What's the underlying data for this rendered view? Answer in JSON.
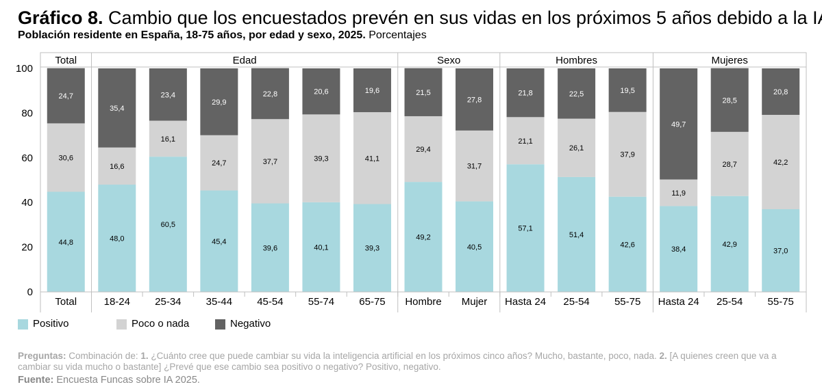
{
  "header": {
    "title_prefix": "Gráfico 8.",
    "title_text": " Cambio que los encuestados prevén en sus vidas en los próximos 5 años debido a la IA",
    "subtitle_bold": "Población residente en España, 18-75 años, por edad y sexo, 2025.",
    "subtitle_regular": " Porcentajes"
  },
  "chart_data": {
    "type": "bar",
    "stacked": true,
    "ylim": [
      0,
      100
    ],
    "yticks": [
      0,
      20,
      40,
      60,
      80,
      100
    ],
    "groups": [
      {
        "label": "Total",
        "categories": [
          "Total"
        ]
      },
      {
        "label": "Edad",
        "categories": [
          "18-24",
          "25-34",
          "35-44",
          "45-54",
          "55-74",
          "65-75"
        ]
      },
      {
        "label": "Sexo",
        "categories": [
          "Hombre",
          "Mujer"
        ]
      },
      {
        "label": "Hombres",
        "categories": [
          "Hasta 24",
          "25-54",
          "55-75"
        ]
      },
      {
        "label": "Mujeres",
        "categories": [
          "Hasta 24",
          "25-54",
          "55-75"
        ]
      }
    ],
    "categories": [
      "Total",
      "18-24",
      "25-34",
      "35-44",
      "45-54",
      "55-74",
      "65-75",
      "Hombre",
      "Mujer",
      "Hasta 24",
      "25-54",
      "55-75",
      "Hasta 24",
      "25-54",
      "55-75"
    ],
    "series": [
      {
        "name": "Positivo",
        "color": "#a8d8df",
        "values": [
          "44,8",
          "48,0",
          "60,5",
          "45,4",
          "39,6",
          "40,1",
          "39,3",
          "49,2",
          "40,5",
          "57,1",
          "51,4",
          "42,6",
          "38,4",
          "42,9",
          "37,0"
        ]
      },
      {
        "name": "Poco o nada",
        "color": "#d3d3d3",
        "values": [
          "30,6",
          "16,6",
          "16,1",
          "24,7",
          "37,7",
          "39,3",
          "41,1",
          "29,4",
          "31,7",
          "21,1",
          "26,1",
          "37,9",
          "11,9",
          "28,7",
          "42,2"
        ]
      },
      {
        "name": "Negativo",
        "color": "#636363",
        "values": [
          "24,7",
          "35,4",
          "23,4",
          "29,9",
          "22,8",
          "20,6",
          "19,6",
          "21,5",
          "27,8",
          "21,8",
          "22,5",
          "19,5",
          "49,7",
          "28,5",
          "20,8"
        ]
      }
    ]
  },
  "footer": {
    "questions_label": "Preguntas:",
    "questions_text": " Combinación de: ",
    "q1_num": "1.",
    "q1_text": " ¿Cuánto cree que puede cambiar su vida la inteligencia artificial en los próximos cinco años? Mucho, bastante, poco, nada. ",
    "q2_num": "2.",
    "q2_text": " [A quienes creen que va a cambiar su vida mucho o bastante] ¿Prevé que ese cambio sea positivo o negativo? Positivo, negativo.",
    "source_label": "Fuente:",
    "source_text": " Encuesta Funcas sobre IA 2025."
  }
}
